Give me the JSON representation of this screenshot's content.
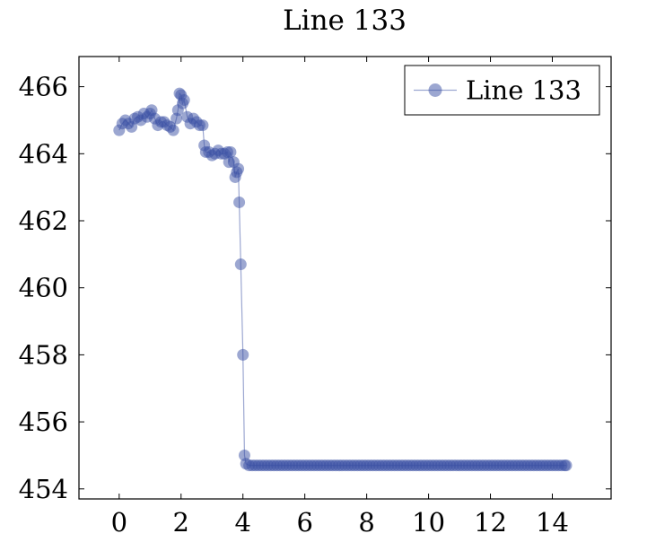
{
  "chart_data": {
    "type": "line",
    "title": "Line 133",
    "xlabel": "",
    "ylabel": "",
    "xlim": [
      -1.3,
      15.9
    ],
    "ylim": [
      453.7,
      466.9
    ],
    "xticks": [
      0,
      2,
      4,
      6,
      8,
      10,
      12,
      14
    ],
    "yticks": [
      454,
      456,
      458,
      460,
      462,
      464,
      466
    ],
    "xtick_labels": [
      "0",
      "2",
      "4",
      "6",
      "8",
      "10",
      "12",
      "14"
    ],
    "ytick_labels": [
      "454",
      "456",
      "458",
      "460",
      "462",
      "464",
      "466"
    ],
    "grid": false,
    "legend_position": "top-right",
    "series": [
      {
        "name": "Line 133",
        "color": "#3a4fa3",
        "marker": "circle",
        "points": [
          [
            0.0,
            464.7
          ],
          [
            0.1,
            464.9
          ],
          [
            0.2,
            465.0
          ],
          [
            0.3,
            464.9
          ],
          [
            0.4,
            464.8
          ],
          [
            0.5,
            465.05
          ],
          [
            0.6,
            465.1
          ],
          [
            0.7,
            465.0
          ],
          [
            0.8,
            465.2
          ],
          [
            0.9,
            465.1
          ],
          [
            1.0,
            465.2
          ],
          [
            1.05,
            465.3
          ],
          [
            1.15,
            465.05
          ],
          [
            1.25,
            464.85
          ],
          [
            1.35,
            464.95
          ],
          [
            1.45,
            464.95
          ],
          [
            1.55,
            464.85
          ],
          [
            1.65,
            464.8
          ],
          [
            1.75,
            464.7
          ],
          [
            1.85,
            465.05
          ],
          [
            1.9,
            465.3
          ],
          [
            1.95,
            465.8
          ],
          [
            2.0,
            465.75
          ],
          [
            2.05,
            465.5
          ],
          [
            2.1,
            465.6
          ],
          [
            2.2,
            465.1
          ],
          [
            2.3,
            464.9
          ],
          [
            2.4,
            465.05
          ],
          [
            2.5,
            464.95
          ],
          [
            2.6,
            464.85
          ],
          [
            2.7,
            464.85
          ],
          [
            2.75,
            464.25
          ],
          [
            2.8,
            464.05
          ],
          [
            2.9,
            464.05
          ],
          [
            3.0,
            463.95
          ],
          [
            3.1,
            464.0
          ],
          [
            3.2,
            464.1
          ],
          [
            3.3,
            464.0
          ],
          [
            3.4,
            464.0
          ],
          [
            3.5,
            464.05
          ],
          [
            3.55,
            463.75
          ],
          [
            3.6,
            464.05
          ],
          [
            3.7,
            463.75
          ],
          [
            3.75,
            463.3
          ],
          [
            3.8,
            463.45
          ],
          [
            3.85,
            463.55
          ],
          [
            3.88,
            462.55
          ],
          [
            3.93,
            460.7
          ],
          [
            4.0,
            458.0
          ],
          [
            4.05,
            455.0
          ],
          [
            4.1,
            454.75
          ],
          [
            4.2,
            454.7
          ],
          [
            4.3,
            454.7
          ],
          [
            4.4,
            454.7
          ],
          [
            4.5,
            454.7
          ],
          [
            4.6,
            454.7
          ],
          [
            4.7,
            454.7
          ],
          [
            4.8,
            454.7
          ],
          [
            4.9,
            454.7
          ],
          [
            5.0,
            454.7
          ],
          [
            5.1,
            454.7
          ],
          [
            5.2,
            454.7
          ],
          [
            5.3,
            454.7
          ],
          [
            5.4,
            454.7
          ],
          [
            5.5,
            454.7
          ],
          [
            5.6,
            454.7
          ],
          [
            5.7,
            454.7
          ],
          [
            5.8,
            454.7
          ],
          [
            5.9,
            454.7
          ],
          [
            6.0,
            454.7
          ],
          [
            6.1,
            454.7
          ],
          [
            6.2,
            454.7
          ],
          [
            6.3,
            454.7
          ],
          [
            6.4,
            454.7
          ],
          [
            6.5,
            454.7
          ],
          [
            6.6,
            454.7
          ],
          [
            6.7,
            454.7
          ],
          [
            6.8,
            454.7
          ],
          [
            6.9,
            454.7
          ],
          [
            7.0,
            454.7
          ],
          [
            7.1,
            454.7
          ],
          [
            7.2,
            454.7
          ],
          [
            7.3,
            454.7
          ],
          [
            7.4,
            454.7
          ],
          [
            7.5,
            454.7
          ],
          [
            7.6,
            454.7
          ],
          [
            7.7,
            454.7
          ],
          [
            7.8,
            454.7
          ],
          [
            7.9,
            454.7
          ],
          [
            8.0,
            454.7
          ],
          [
            8.1,
            454.7
          ],
          [
            8.2,
            454.7
          ],
          [
            8.3,
            454.7
          ],
          [
            8.4,
            454.7
          ],
          [
            8.5,
            454.7
          ],
          [
            8.6,
            454.7
          ],
          [
            8.7,
            454.7
          ],
          [
            8.8,
            454.7
          ],
          [
            8.9,
            454.7
          ],
          [
            9.0,
            454.7
          ],
          [
            9.1,
            454.7
          ],
          [
            9.2,
            454.7
          ],
          [
            9.3,
            454.7
          ],
          [
            9.4,
            454.7
          ],
          [
            9.5,
            454.7
          ],
          [
            9.6,
            454.7
          ],
          [
            9.7,
            454.7
          ],
          [
            9.8,
            454.7
          ],
          [
            9.9,
            454.7
          ],
          [
            10.0,
            454.7
          ],
          [
            10.1,
            454.7
          ],
          [
            10.2,
            454.7
          ],
          [
            10.3,
            454.7
          ],
          [
            10.4,
            454.7
          ],
          [
            10.5,
            454.7
          ],
          [
            10.6,
            454.7
          ],
          [
            10.7,
            454.7
          ],
          [
            10.8,
            454.7
          ],
          [
            10.9,
            454.7
          ],
          [
            11.0,
            454.7
          ],
          [
            11.1,
            454.7
          ],
          [
            11.2,
            454.7
          ],
          [
            11.3,
            454.7
          ],
          [
            11.4,
            454.7
          ],
          [
            11.5,
            454.7
          ],
          [
            11.6,
            454.7
          ],
          [
            11.7,
            454.7
          ],
          [
            11.8,
            454.7
          ],
          [
            11.9,
            454.7
          ],
          [
            12.0,
            454.7
          ],
          [
            12.1,
            454.7
          ],
          [
            12.2,
            454.7
          ],
          [
            12.3,
            454.7
          ],
          [
            12.4,
            454.7
          ],
          [
            12.5,
            454.7
          ],
          [
            12.6,
            454.7
          ],
          [
            12.7,
            454.7
          ],
          [
            12.8,
            454.7
          ],
          [
            12.9,
            454.7
          ],
          [
            13.0,
            454.7
          ],
          [
            13.1,
            454.7
          ],
          [
            13.2,
            454.7
          ],
          [
            13.3,
            454.7
          ],
          [
            13.4,
            454.7
          ],
          [
            13.5,
            454.7
          ],
          [
            13.6,
            454.7
          ],
          [
            13.7,
            454.7
          ],
          [
            13.8,
            454.7
          ],
          [
            13.9,
            454.7
          ],
          [
            14.0,
            454.7
          ],
          [
            14.1,
            454.7
          ],
          [
            14.2,
            454.7
          ],
          [
            14.3,
            454.7
          ],
          [
            14.4,
            454.7
          ],
          [
            14.45,
            454.7
          ]
        ]
      }
    ]
  }
}
